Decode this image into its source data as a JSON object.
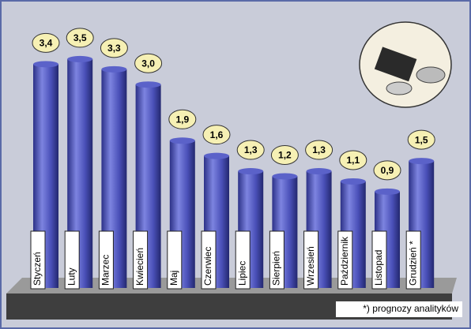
{
  "chart_data": {
    "type": "bar",
    "categories": [
      "Styczeń",
      "Luty",
      "Marzec",
      "Kwiecień",
      "Maj",
      "Czerwiec",
      "Lipiec",
      "Sierpień",
      "Wrzesień",
      "Październik",
      "Listopad",
      "Grudzień *"
    ],
    "values": [
      3.4,
      3.5,
      3.3,
      3.0,
      1.9,
      1.6,
      1.3,
      1.2,
      1.3,
      1.1,
      0.9,
      1.5
    ],
    "value_labels": [
      "3,4",
      "3,5",
      "3,3",
      "3,0",
      "1,9",
      "1,6",
      "1,3",
      "1,2",
      "1,3",
      "1,1",
      "0,9",
      "1,5"
    ],
    "color": "#5b62c9",
    "footnote": "*) prognozy analityków"
  }
}
